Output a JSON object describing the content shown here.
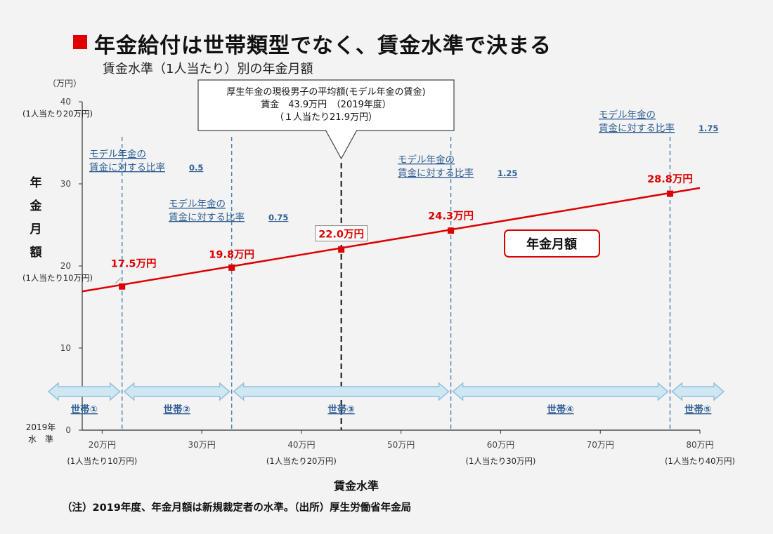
{
  "header": {
    "title": "年金給付は世帯類型でなく、賃金水準で決まる",
    "subtitle": "賃金水準（1人当たり）別の年金月額"
  },
  "colors": {
    "accent": "#dd0000",
    "dashed": "#4a7fb5",
    "arrow_fill": "#cfe6f3",
    "arrow_stroke": "#8fc2dc",
    "ratio_text": "#2f5f93",
    "setai_text": "#2f5f93",
    "title_square": "#e00000"
  },
  "chart_data": {
    "type": "line",
    "title": "",
    "xlabel": "賃金水準",
    "ylabel": "年金月額",
    "yunit": "（万円）",
    "xlim": [
      18,
      80
    ],
    "ylim": [
      0,
      40
    ],
    "yticks": [
      0,
      10,
      20,
      30,
      40
    ],
    "xticks": [
      20,
      30,
      40,
      50,
      60,
      70,
      80
    ],
    "xtick_labels": [
      "20万円",
      "30万円",
      "40万円",
      "50万円",
      "60万円",
      "70万円",
      "80万円"
    ],
    "xtick_sublabels": [
      {
        "x": 20,
        "text": "(1人当たり10万円)"
      },
      {
        "x": 40,
        "text": "(1人当たり20万円)"
      },
      {
        "x": 60,
        "text": "(1人当たり30万円)"
      },
      {
        "x": 80,
        "text": "(1人当たり40万円)"
      }
    ],
    "ytick_sublabels": [
      {
        "y": 40,
        "text": "(1人当たり20万円)"
      },
      {
        "y": 20,
        "text": "(1人当たり10万円)"
      }
    ],
    "year_label": [
      "2019年",
      "水　準"
    ],
    "series": [
      {
        "name": "年金月額",
        "line": [
          {
            "x": 18,
            "y": 16.9
          },
          {
            "x": 80,
            "y": 29.5
          }
        ],
        "points": [
          {
            "x": 22,
            "y": 17.5,
            "label": "17.5万円"
          },
          {
            "x": 33,
            "y": 19.8,
            "label": "19.8万円"
          },
          {
            "x": 44,
            "y": 22.0,
            "label": "22.0万円"
          },
          {
            "x": 55,
            "y": 24.3,
            "label": "24.3万円"
          },
          {
            "x": 77,
            "y": 28.8,
            "label": "28.8万円"
          }
        ]
      }
    ],
    "legend_box": "年金月額",
    "ratio_labels": [
      {
        "x": 22,
        "line1": "モデル年金の",
        "line2": "賃金に対する比率",
        "value": "0.5"
      },
      {
        "x": 33,
        "line1": "モデル年金の",
        "line2": "賃金に対する比率",
        "value": "0.75"
      },
      {
        "x": 55,
        "line1": "モデル年金の",
        "line2": "賃金に対する比率",
        "value": "1.25"
      },
      {
        "x": 77,
        "line1": "モデル年金の",
        "line2": "賃金に対する比率",
        "value": "1.75"
      }
    ],
    "reference": {
      "x": 44,
      "lines": [
        "厚生年金の現役男子の平均額(モデル年金の賃金)",
        "賃金　43.9万円　（2019年度）",
        "（１人当たり21.9万円）"
      ]
    },
    "households": [
      {
        "x1": 18,
        "x2": 22,
        "label": "世帯①"
      },
      {
        "x1": 22,
        "x2": 33,
        "label": "世帯②"
      },
      {
        "x1": 33,
        "x2": 55,
        "label": "世帯③"
      },
      {
        "x1": 55,
        "x2": 77,
        "label": "世帯④"
      },
      {
        "x1": 77,
        "x2": 80,
        "label": "世帯⑤"
      }
    ]
  },
  "footer": {
    "note": "（注）2019年度、年金月額は新規裁定者の水準。（出所）厚生労働省年金局"
  }
}
